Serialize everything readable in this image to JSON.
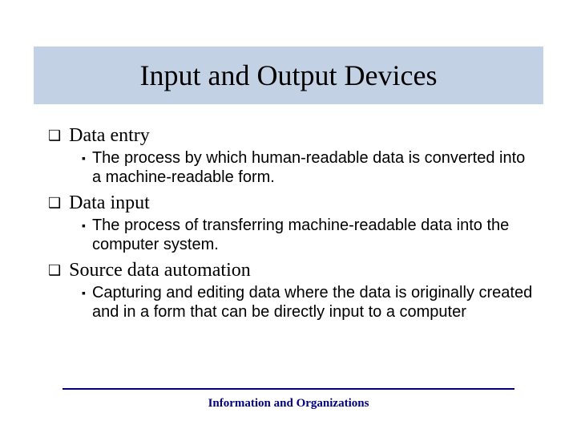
{
  "title": "Input and Output Devices",
  "items": [
    {
      "label": "Data entry",
      "sub": "The process by which human-readable data is converted into a machine-readable form."
    },
    {
      "label": "Data input",
      "sub": "The process of transferring machine-readable data into the computer system."
    },
    {
      "label": "Source data automation",
      "sub": "Capturing and editing data where the data is originally created and in a form that can be directly input to a computer"
    }
  ],
  "footer": "Information and Organizations",
  "colors": {
    "title_band_bg": "#c3d1e5",
    "footer_color": "#000080",
    "text_color": "#000000",
    "background": "#ffffff"
  },
  "typography": {
    "title_fontsize": 36,
    "top_label_fontsize": 24,
    "sub_text_fontsize": 20,
    "footer_fontsize": 15,
    "title_font": "Times New Roman",
    "top_font": "Times New Roman",
    "sub_font": "Arial"
  },
  "bullets": {
    "top": "❑",
    "sub": "▪"
  }
}
